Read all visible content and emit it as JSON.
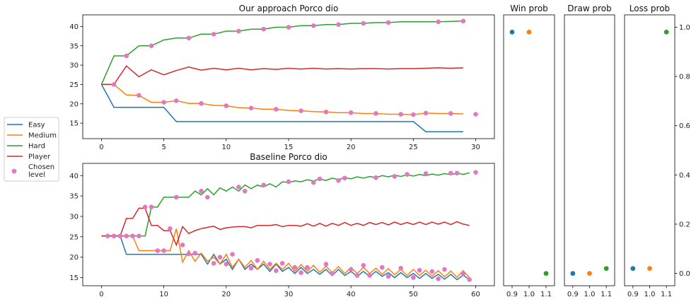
{
  "colors": {
    "Easy": "#1f77b4",
    "Medium": "#ff7f0e",
    "Hard": "#2ca02c",
    "Player": "#d62728",
    "Chosen": "#e377c2"
  },
  "legend": [
    {
      "key": "Easy",
      "label": "Easy"
    },
    {
      "key": "Medium",
      "label": "Medium"
    },
    {
      "key": "Hard",
      "label": "Hard"
    },
    {
      "key": "Player",
      "label": "Player"
    },
    {
      "key": "Chosen",
      "label": "Chosen level",
      "lines": [
        "Chosen",
        "level"
      ]
    }
  ],
  "chart_data": [
    {
      "id": "top",
      "type": "line",
      "title": "Our approach Porco dio",
      "xlim": [
        -1.5,
        31.5
      ],
      "ylim": [
        11,
        43
      ],
      "xticks": [
        0,
        5,
        10,
        15,
        20,
        25,
        30
      ],
      "yticks": [
        15,
        20,
        25,
        30,
        35,
        40
      ],
      "series": [
        {
          "key": "Easy",
          "x": [
            0,
            1,
            2,
            3,
            4,
            5,
            6,
            7,
            8,
            9,
            10,
            11,
            12,
            13,
            14,
            15,
            16,
            17,
            18,
            19,
            20,
            21,
            22,
            23,
            24,
            25,
            26,
            27,
            28,
            29
          ],
          "y": [
            25,
            19.1,
            19.1,
            19.1,
            19.1,
            19.1,
            15.4,
            15.4,
            15.4,
            15.4,
            15.4,
            15.4,
            15.4,
            15.4,
            15.4,
            15.4,
            15.4,
            15.4,
            15.4,
            15.4,
            15.4,
            15.4,
            15.4,
            15.4,
            15.4,
            15.4,
            12.8,
            12.8,
            12.8,
            12.8
          ]
        },
        {
          "key": "Medium",
          "x": [
            0,
            1,
            2,
            3,
            4,
            5,
            6,
            7,
            8,
            9,
            10,
            11,
            12,
            13,
            14,
            15,
            16,
            17,
            18,
            19,
            20,
            21,
            22,
            23,
            24,
            25,
            26,
            27,
            28,
            29
          ],
          "y": [
            25,
            25,
            22.3,
            22.2,
            20.4,
            20.4,
            20.8,
            20.1,
            20.1,
            19.6,
            19.5,
            19.0,
            18.9,
            18.6,
            18.6,
            18.3,
            18.2,
            18.0,
            17.9,
            17.7,
            17.7,
            17.5,
            17.5,
            17.3,
            17.3,
            17.2,
            17.6,
            17.5,
            17.5,
            17.4
          ]
        },
        {
          "key": "Hard",
          "x": [
            0,
            1,
            2,
            3,
            4,
            5,
            6,
            7,
            8,
            9,
            10,
            11,
            12,
            13,
            14,
            15,
            16,
            17,
            18,
            19,
            20,
            21,
            22,
            23,
            24,
            25,
            26,
            27,
            28,
            29
          ],
          "y": [
            25,
            32.4,
            32.4,
            35.0,
            35.0,
            36.5,
            37.0,
            37.0,
            38.0,
            38.0,
            38.8,
            38.8,
            39.3,
            39.3,
            39.8,
            39.8,
            40.2,
            40.2,
            40.5,
            40.5,
            40.8,
            40.8,
            41.0,
            41.0,
            41.2,
            41.2,
            41.2,
            41.2,
            41.3,
            41.4
          ]
        },
        {
          "key": "Player",
          "x": [
            0,
            1,
            2,
            3,
            4,
            5,
            6,
            7,
            8,
            9,
            10,
            11,
            12,
            13,
            14,
            15,
            16,
            17,
            18,
            19,
            20,
            21,
            22,
            23,
            24,
            25,
            26,
            27,
            28,
            29
          ],
          "y": [
            25,
            25,
            29.8,
            27.0,
            28.8,
            27.5,
            28.6,
            29.5,
            28.7,
            29.2,
            28.8,
            29.2,
            28.8,
            29.1,
            28.9,
            29.2,
            29.0,
            29.2,
            29.0,
            29.1,
            29.0,
            29.1,
            29.1,
            29.0,
            29.1,
            29.1,
            29.2,
            29.3,
            29.2,
            29.3
          ]
        }
      ],
      "chosen": {
        "x": [
          1,
          2,
          3,
          4,
          5,
          6,
          7,
          8,
          9,
          10,
          11,
          12,
          13,
          14,
          15,
          16,
          17,
          18,
          19,
          20,
          21,
          22,
          23,
          24,
          25,
          26,
          27,
          28,
          29,
          30
        ],
        "y": [
          25,
          32.4,
          22.2,
          35.0,
          20.4,
          20.8,
          37.0,
          20.1,
          38.0,
          19.5,
          38.8,
          18.9,
          39.3,
          18.6,
          39.8,
          18.2,
          40.2,
          17.9,
          40.5,
          17.7,
          40.8,
          17.5,
          41.0,
          17.3,
          17.2,
          17.6,
          41.2,
          17.5,
          41.4,
          17.3
        ]
      }
    },
    {
      "id": "bottom",
      "type": "line",
      "title": "Baseline Porco dio",
      "xlim": [
        -3,
        63
      ],
      "ylim": [
        13,
        43
      ],
      "xticks": [
        0,
        10,
        20,
        30,
        40,
        50,
        60
      ],
      "yticks": [
        15,
        20,
        25,
        30,
        35,
        40
      ],
      "series": [
        {
          "key": "Easy",
          "x": [
            0,
            1,
            2,
            3,
            4,
            5,
            6,
            7,
            8,
            9,
            10,
            11,
            12,
            13,
            14,
            15,
            16,
            17,
            18,
            19,
            20,
            21,
            22,
            23,
            24,
            25,
            26,
            27,
            28,
            29,
            30,
            31,
            32,
            33,
            34,
            35,
            36,
            37,
            38,
            39,
            40,
            41,
            42,
            43,
            44,
            45,
            46,
            47,
            48,
            49,
            50,
            51,
            52,
            53,
            54,
            55,
            56,
            57,
            58,
            59
          ],
          "y": [
            25.2,
            25.2,
            25.2,
            25.2,
            20.7,
            20.7,
            20.7,
            20.7,
            20.7,
            20.7,
            20.7,
            20.7,
            20.7,
            20.7,
            20.7,
            20.7,
            20.7,
            18.3,
            20.7,
            18.3,
            19.5,
            17.0,
            19.5,
            17.0,
            18.3,
            17.0,
            18.3,
            16.5,
            18.3,
            16.5,
            17.5,
            16.0,
            17.5,
            16.0,
            17.0,
            15.8,
            17.0,
            15.5,
            17.0,
            15.5,
            16.5,
            15.3,
            16.5,
            15.3,
            16.5,
            15.3,
            16.2,
            15.0,
            16.2,
            15.0,
            16.0,
            14.8,
            16.0,
            14.8,
            15.8,
            14.6,
            15.8,
            14.5,
            15.6,
            14.5
          ]
        },
        {
          "key": "Medium",
          "x": [
            0,
            1,
            2,
            3,
            4,
            5,
            6,
            7,
            8,
            9,
            10,
            11,
            12,
            13,
            14,
            15,
            16,
            17,
            18,
            19,
            20,
            21,
            22,
            23,
            24,
            25,
            26,
            27,
            28,
            29,
            30,
            31,
            32,
            33,
            34,
            35,
            36,
            37,
            38,
            39,
            40,
            41,
            42,
            43,
            44,
            45,
            46,
            47,
            48,
            49,
            50,
            51,
            52,
            53,
            54,
            55,
            56,
            57,
            58,
            59
          ],
          "y": [
            25.2,
            25.2,
            25.2,
            25.2,
            25.2,
            25.2,
            21.6,
            21.6,
            21.6,
            21.6,
            21.6,
            21.6,
            27.0,
            18.8,
            21.6,
            19.0,
            21.0,
            19.0,
            20.0,
            18.3,
            20.7,
            17.5,
            19.5,
            17.5,
            19.2,
            17.0,
            19.0,
            17.0,
            18.5,
            17.0,
            18.5,
            16.5,
            18.2,
            16.5,
            18.0,
            16.3,
            17.8,
            16.2,
            17.7,
            16.0,
            17.5,
            16.0,
            17.5,
            16.0,
            17.3,
            15.8,
            17.2,
            15.7,
            17.0,
            15.5,
            17.0,
            15.5,
            16.8,
            15.3,
            16.7,
            15.2,
            16.6,
            15.1,
            16.7,
            15.0
          ]
        },
        {
          "key": "Hard",
          "x": [
            0,
            1,
            2,
            3,
            4,
            5,
            6,
            7,
            8,
            9,
            10,
            11,
            12,
            13,
            14,
            15,
            16,
            17,
            18,
            19,
            20,
            21,
            22,
            23,
            24,
            25,
            26,
            27,
            28,
            29,
            30,
            31,
            32,
            33,
            34,
            35,
            36,
            37,
            38,
            39,
            40,
            41,
            42,
            43,
            44,
            45,
            46,
            47,
            48,
            49,
            50,
            51,
            52,
            53,
            54,
            55,
            56,
            57,
            58,
            59
          ],
          "y": [
            25.2,
            25.2,
            25.2,
            25.2,
            25.2,
            25.2,
            25.2,
            25.2,
            32.3,
            32.3,
            34.7,
            34.7,
            34.7,
            34.7,
            34.7,
            36.2,
            35.3,
            36.8,
            35.3,
            37.0,
            36.2,
            37.2,
            36.2,
            37.7,
            36.8,
            37.7,
            37.2,
            38.0,
            37.2,
            38.5,
            38.3,
            38.7,
            38.5,
            39.0,
            38.7,
            39.2,
            38.8,
            39.4,
            39.0,
            39.5,
            39.2,
            39.7,
            39.4,
            39.8,
            39.5,
            40.0,
            39.7,
            40.1,
            39.8,
            40.2,
            39.9,
            40.3,
            40.0,
            40.4,
            40.1,
            40.5,
            40.2,
            40.6,
            40.3,
            40.7
          ]
        },
        {
          "key": "Player",
          "x": [
            0,
            1,
            2,
            3,
            4,
            5,
            6,
            7,
            8,
            9,
            10,
            11,
            12,
            13,
            14,
            15,
            16,
            17,
            18,
            19,
            20,
            21,
            22,
            23,
            24,
            25,
            26,
            27,
            28,
            29,
            30,
            31,
            32,
            33,
            34,
            35,
            36,
            37,
            38,
            39,
            40,
            41,
            42,
            43,
            44,
            45,
            46,
            47,
            48,
            49,
            50,
            51,
            52,
            53,
            54,
            55,
            56,
            57,
            58,
            59
          ],
          "y": [
            25.2,
            25.2,
            25.2,
            25.2,
            29.5,
            29.5,
            32.0,
            32.0,
            27.8,
            27.8,
            26.5,
            26.5,
            23.0,
            27.5,
            25.8,
            26.5,
            27.0,
            27.3,
            27.6,
            26.8,
            27.2,
            27.4,
            27.5,
            27.5,
            27.2,
            27.8,
            27.8,
            27.8,
            28.0,
            27.5,
            27.8,
            27.8,
            27.6,
            28.2,
            27.6,
            28.3,
            27.6,
            28.3,
            27.8,
            28.5,
            27.8,
            28.3,
            27.8,
            28.5,
            28.0,
            28.5,
            27.9,
            28.6,
            28.0,
            28.5,
            28.0,
            28.6,
            28.0,
            28.6,
            28.1,
            28.6,
            28.0,
            28.7,
            28.1,
            27.8
          ]
        }
      ],
      "chosen": {
        "x": [
          1,
          2,
          3,
          4,
          5,
          6,
          7,
          8,
          9,
          10,
          11,
          12,
          13,
          14,
          15,
          16,
          17,
          18,
          19,
          20,
          21,
          22,
          23,
          24,
          25,
          26,
          27,
          28,
          29,
          30,
          31,
          32,
          33,
          34,
          35,
          36,
          37,
          38,
          39,
          40,
          41,
          42,
          43,
          44,
          45,
          46,
          47,
          48,
          49,
          50,
          51,
          52,
          53,
          54,
          55,
          56,
          57,
          58,
          59,
          60
        ],
        "y": [
          25.2,
          25.2,
          25.2,
          25.2,
          25.2,
          25.2,
          32.3,
          32.3,
          21.6,
          21.6,
          27.0,
          34.7,
          23.0,
          20.8,
          21.0,
          36.2,
          34.7,
          18.5,
          20.0,
          18.3,
          20.7,
          37.2,
          36.2,
          17.3,
          19.2,
          37.7,
          18.3,
          16.7,
          18.5,
          38.5,
          17.5,
          16.2,
          17.5,
          38.3,
          39.2,
          18.3,
          16.0,
          38.8,
          39.4,
          17.0,
          15.5,
          18.0,
          15.5,
          39.5,
          17.5,
          15.3,
          39.8,
          17.3,
          40.3,
          15.0,
          16.8,
          40.5,
          16.5,
          14.7,
          17.0,
          40.6,
          40.6,
          16.0,
          14.5,
          40.8
        ]
      }
    },
    {
      "id": "win",
      "type": "scatter",
      "title": "Win prob",
      "xlim": [
        0.85,
        1.15
      ],
      "ylim": [
        -0.05,
        1.05
      ],
      "xticks": [
        0.9,
        1.0,
        1.1
      ],
      "xtick_labels": [
        "0.9",
        "1.0",
        "1.1"
      ],
      "points": [
        {
          "key": "Easy",
          "x": 0.9,
          "y": 0.98
        },
        {
          "key": "Medium",
          "x": 1.0,
          "y": 0.98
        },
        {
          "key": "Hard",
          "x": 1.1,
          "y": 0.0
        }
      ]
    },
    {
      "id": "draw",
      "type": "scatter",
      "title": "Draw prob",
      "xlim": [
        0.85,
        1.15
      ],
      "ylim": [
        -0.05,
        1.05
      ],
      "xticks": [
        0.9,
        1.0,
        1.1
      ],
      "xtick_labels": [
        "0.9",
        "1.0",
        "1.1"
      ],
      "points": [
        {
          "key": "Easy",
          "x": 0.9,
          "y": 0.0
        },
        {
          "key": "Medium",
          "x": 1.0,
          "y": 0.0
        },
        {
          "key": "Hard",
          "x": 1.1,
          "y": 0.02
        }
      ]
    },
    {
      "id": "loss",
      "type": "scatter",
      "title": "Loss prob",
      "xlim": [
        0.85,
        1.15
      ],
      "ylim": [
        -0.05,
        1.05
      ],
      "xticks": [
        0.9,
        1.0,
        1.1
      ],
      "xtick_labels": [
        "0.9",
        "1.0",
        "1.1"
      ],
      "yticks": [
        0.0,
        0.2,
        0.4,
        0.6,
        0.8,
        1.0
      ],
      "ytick_labels": [
        "0.0",
        "0.2",
        "0.4",
        "0.6",
        "0.8",
        "1.0"
      ],
      "points": [
        {
          "key": "Easy",
          "x": 0.9,
          "y": 0.02
        },
        {
          "key": "Medium",
          "x": 1.0,
          "y": 0.02
        },
        {
          "key": "Hard",
          "x": 1.1,
          "y": 0.98
        }
      ]
    }
  ]
}
